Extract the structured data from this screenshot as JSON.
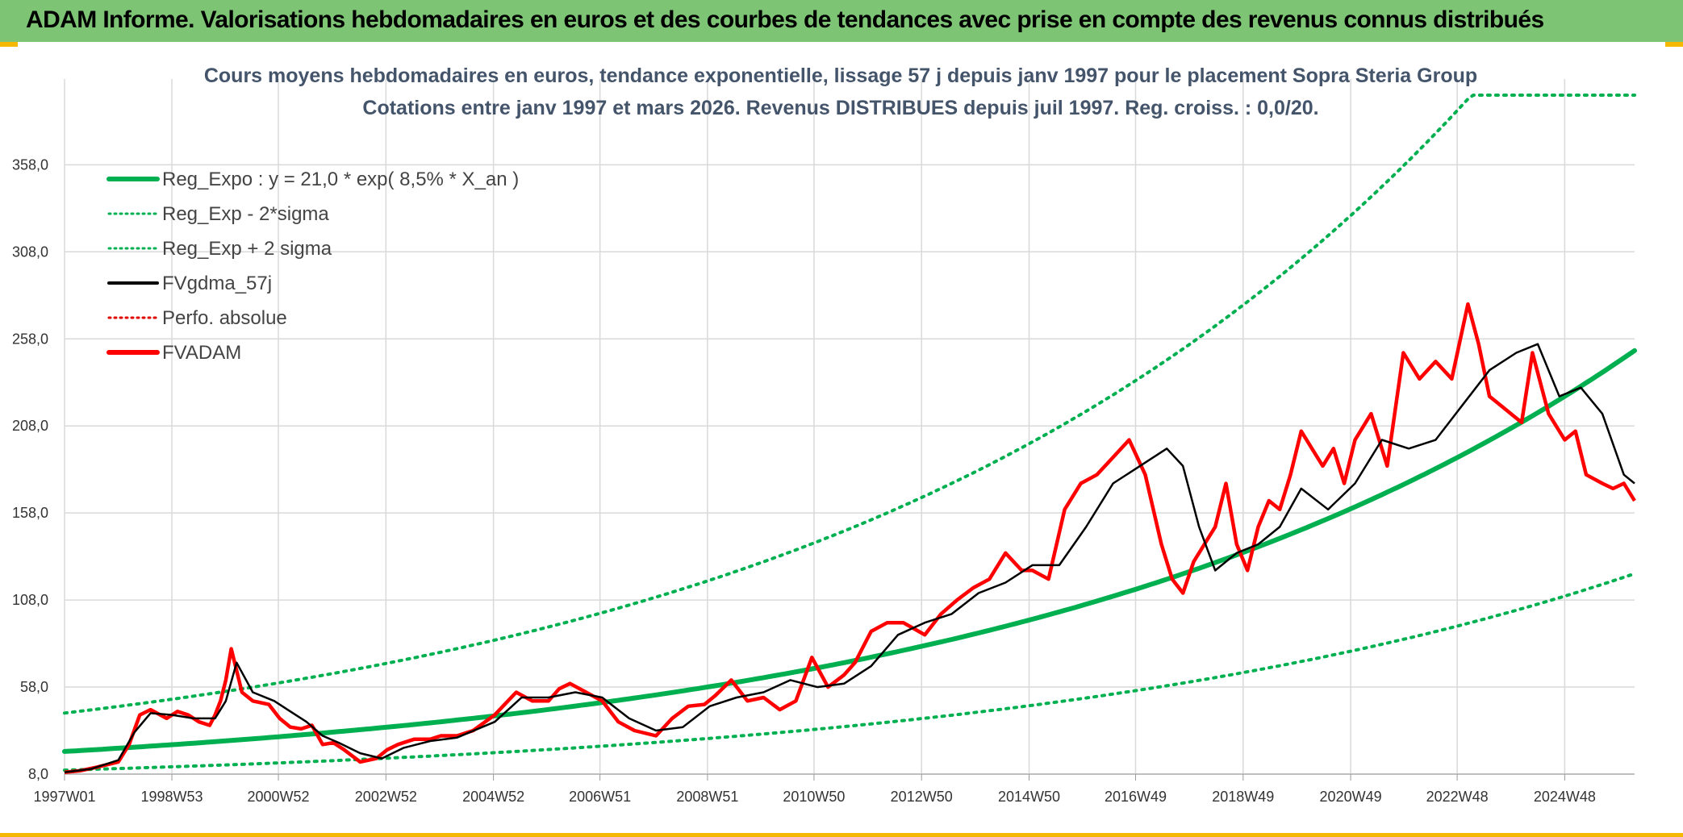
{
  "header": {
    "title": "ADAM Informe. Valorisations hebdomadaires en euros et des courbes de tendances avec prise en compte des revenus connus distribués",
    "bg_color": "#7dc474",
    "accent_color": "#f5b800"
  },
  "chart_data": {
    "type": "line",
    "title": "Cours moyens hebdomadaires en euros, tendance exponentielle, lissage 57 j depuis janv 1997 pour le placement Sopra Steria Group",
    "subtitle": "Cotations entre janv 1997 et mars 2026. Revenus DISTRIBUES depuis juil 1997. Reg. croiss. : 0,0/20.",
    "xlabel": "",
    "ylabel": "",
    "ylim": [
      8,
      398
    ],
    "yticks": [
      "8,0",
      "58,0",
      "108,0",
      "158,0",
      "208,0",
      "258,0",
      "308,0",
      "358,0"
    ],
    "xticks": [
      "1997W01",
      "1998W53",
      "2000W52",
      "2002W52",
      "2004W52",
      "2006W51",
      "2008W51",
      "2010W50",
      "2012W50",
      "2014W50",
      "2016W49",
      "2018W49",
      "2020W49",
      "2022W48",
      "2024W48"
    ],
    "xrange_years": [
      1997.0,
      2026.2
    ],
    "grid": true,
    "legend_position": "top-left",
    "legend": [
      {
        "name": "Reg_Expo : y = 21,0 * exp( 8,5% *  X_an )",
        "color": "#00b050",
        "style": "solid-thick"
      },
      {
        "name": "Reg_Exp - 2*sigma",
        "color": "#00b050",
        "style": "dotted"
      },
      {
        "name": "Reg_Exp + 2 sigma",
        "color": "#00b050",
        "style": "dotted"
      },
      {
        "name": "FVgdma_57j",
        "color": "#000000",
        "style": "solid"
      },
      {
        "name": "Perfo. absolue",
        "color": "#e00000",
        "style": "dotted"
      },
      {
        "name": "FVADAM",
        "color": "#ff0000",
        "style": "solid-thick"
      }
    ],
    "series": [
      {
        "name": "Reg_Expo",
        "model": "exp",
        "a": 21.0,
        "r": 0.085,
        "factor": 1.0
      },
      {
        "name": "Reg_Exp - 2*sigma",
        "model": "exp",
        "a": 21.0,
        "r": 0.085,
        "factor": 0.49
      },
      {
        "name": "Reg_Exp + 2 sigma",
        "model": "exp",
        "a": 21.0,
        "r": 0.085,
        "factor": 2.05
      },
      {
        "name": "FVADAM",
        "x": [
          1997.0,
          1997.3,
          1997.6,
          1998.0,
          1998.2,
          1998.4,
          1998.6,
          1998.9,
          1999.1,
          1999.3,
          1999.5,
          1999.7,
          1999.8,
          1999.9,
          2000.0,
          2000.1,
          2000.3,
          2000.5,
          2000.8,
          2001.0,
          2001.2,
          2001.4,
          2001.6,
          2001.8,
          2002.0,
          2002.2,
          2002.5,
          2002.8,
          2003.0,
          2003.2,
          2003.5,
          2003.8,
          2004.0,
          2004.3,
          2004.6,
          2005.0,
          2005.4,
          2005.7,
          2006.0,
          2006.2,
          2006.4,
          2006.7,
          2007.0,
          2007.3,
          2007.6,
          2008.0,
          2008.3,
          2008.6,
          2008.9,
          2009.1,
          2009.4,
          2009.7,
          2010.0,
          2010.3,
          2010.6,
          2010.9,
          2011.2,
          2011.5,
          2011.7,
          2012.0,
          2012.3,
          2012.6,
          2013.0,
          2013.3,
          2013.6,
          2013.9,
          2014.2,
          2014.5,
          2014.8,
          2015.0,
          2015.3,
          2015.6,
          2015.9,
          2016.2,
          2016.5,
          2016.8,
          2017.1,
          2017.4,
          2017.6,
          2017.8,
          2018.0,
          2018.2,
          2018.4,
          2018.6,
          2018.8,
          2019.0,
          2019.2,
          2019.4,
          2019.6,
          2019.8,
          2020.0,
          2020.2,
          2020.4,
          2020.6,
          2020.8,
          2021.0,
          2021.3,
          2021.6,
          2021.9,
          2022.2,
          2022.5,
          2022.8,
          2023.1,
          2023.3,
          2023.5,
          2023.7,
          2023.9,
          2024.1,
          2024.3,
          2024.6,
          2024.9,
          2025.1,
          2025.3,
          2025.6,
          2025.8,
          2026.0,
          2026.2
        ],
        "y": [
          9,
          10,
          12,
          15,
          25,
          42,
          45,
          40,
          44,
          42,
          38,
          36,
          42,
          50,
          62,
          80,
          55,
          50,
          48,
          40,
          35,
          34,
          36,
          25,
          26,
          22,
          15,
          17,
          22,
          25,
          28,
          28,
          30,
          30,
          33,
          42,
          55,
          50,
          50,
          57,
          60,
          55,
          50,
          38,
          33,
          30,
          40,
          47,
          48,
          53,
          62,
          50,
          52,
          45,
          50,
          75,
          58,
          65,
          72,
          90,
          95,
          95,
          88,
          100,
          108,
          115,
          120,
          135,
          125,
          125,
          120,
          160,
          175,
          180,
          190,
          200,
          180,
          140,
          120,
          112,
          130,
          140,
          150,
          175,
          140,
          125,
          150,
          165,
          160,
          180,
          205,
          195,
          185,
          195,
          175,
          200,
          215,
          185,
          250,
          235,
          245,
          235,
          278,
          255,
          225,
          220,
          215,
          210,
          250,
          215,
          200,
          205,
          180,
          175,
          172,
          175,
          165
        ],
        "color": "#ff0000"
      },
      {
        "name": "FVgdma_57j",
        "x": [
          1997.0,
          1997.5,
          1998.0,
          1998.3,
          1998.6,
          1999.0,
          1999.4,
          1999.8,
          2000.0,
          2000.2,
          2000.5,
          2000.9,
          2001.2,
          2001.5,
          2001.8,
          2002.1,
          2002.5,
          2002.9,
          2003.3,
          2003.8,
          2004.3,
          2005.0,
          2005.5,
          2006.0,
          2006.5,
          2007.0,
          2007.5,
          2008.0,
          2008.5,
          2009.0,
          2009.5,
          2010.0,
          2010.5,
          2011.0,
          2011.5,
          2012.0,
          2012.5,
          2013.0,
          2013.5,
          2014.0,
          2014.5,
          2015.0,
          2015.5,
          2016.0,
          2016.5,
          2017.0,
          2017.5,
          2017.8,
          2018.1,
          2018.4,
          2018.8,
          2019.2,
          2019.6,
          2020.0,
          2020.5,
          2021.0,
          2021.5,
          2022.0,
          2022.5,
          2023.0,
          2023.5,
          2024.0,
          2024.4,
          2024.8,
          2025.2,
          2025.6,
          2026.0,
          2026.2
        ],
        "y": [
          9,
          11,
          16,
          32,
          43,
          42,
          40,
          40,
          50,
          72,
          55,
          50,
          44,
          38,
          30,
          26,
          20,
          17,
          23,
          27,
          29,
          38,
          52,
          52,
          55,
          52,
          40,
          33,
          35,
          47,
          52,
          55,
          62,
          58,
          60,
          70,
          88,
          95,
          100,
          112,
          118,
          128,
          128,
          150,
          175,
          185,
          195,
          185,
          150,
          125,
          135,
          140,
          150,
          172,
          160,
          175,
          200,
          195,
          200,
          220,
          240,
          250,
          255,
          225,
          230,
          215,
          180,
          175
        ],
        "color": "#000000"
      }
    ]
  }
}
